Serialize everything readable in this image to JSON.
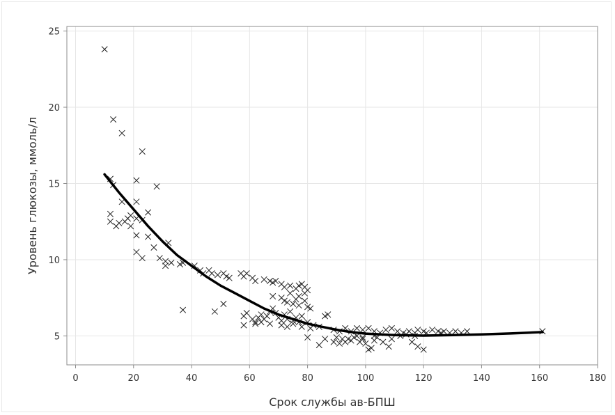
{
  "chart_data": {
    "type": "scatter",
    "xlabel": "Срок службы ав-БПШ",
    "ylabel": "Уровень глюкозы, ммоль/л",
    "xlim": [
      -3,
      180
    ],
    "ylim": [
      3.1,
      25.3
    ],
    "xticks": [
      0,
      20,
      40,
      60,
      80,
      100,
      120,
      140,
      160,
      180
    ],
    "yticks": [
      5,
      10,
      15,
      20,
      25
    ],
    "grid": true,
    "marker": "x",
    "colors": {
      "points": "#222222",
      "fit_line": "#000000",
      "grid": "#e6e6e6",
      "axes": "#8c8c8c"
    },
    "points": [
      [
        10,
        23.8
      ],
      [
        13,
        19.2
      ],
      [
        16,
        18.3
      ],
      [
        23,
        17.1
      ],
      [
        12,
        15.3
      ],
      [
        13,
        14.9
      ],
      [
        21,
        15.2
      ],
      [
        28,
        14.8
      ],
      [
        16,
        13.8
      ],
      [
        21,
        13.8
      ],
      [
        25,
        13.1
      ],
      [
        12,
        13.0
      ],
      [
        12,
        12.5
      ],
      [
        15,
        12.4
      ],
      [
        14,
        12.2
      ],
      [
        17,
        12.5
      ],
      [
        18,
        12.7
      ],
      [
        19,
        12.9
      ],
      [
        19,
        12.2
      ],
      [
        21,
        12.7
      ],
      [
        23,
        12.6
      ],
      [
        21,
        11.6
      ],
      [
        25,
        11.5
      ],
      [
        32,
        11.1
      ],
      [
        27,
        10.8
      ],
      [
        21,
        10.5
      ],
      [
        23,
        10.1
      ],
      [
        29,
        10.1
      ],
      [
        31,
        9.9
      ],
      [
        31,
        9.6
      ],
      [
        33,
        9.8
      ],
      [
        36,
        9.7
      ],
      [
        37,
        9.8
      ],
      [
        41,
        9.6
      ],
      [
        43,
        9.3
      ],
      [
        44,
        9.1
      ],
      [
        46,
        9.3
      ],
      [
        47,
        9.1
      ],
      [
        49,
        9.0
      ],
      [
        51,
        9.1
      ],
      [
        52,
        8.9
      ],
      [
        53,
        8.8
      ],
      [
        57,
        9.1
      ],
      [
        58,
        8.9
      ],
      [
        59,
        9.1
      ],
      [
        61,
        8.8
      ],
      [
        62,
        8.6
      ],
      [
        65,
        8.7
      ],
      [
        67,
        8.6
      ],
      [
        68,
        8.5
      ],
      [
        69,
        8.6
      ],
      [
        71,
        8.4
      ],
      [
        72,
        8.2
      ],
      [
        74,
        8.3
      ],
      [
        76,
        8.1
      ],
      [
        77,
        8.3
      ],
      [
        78,
        8.4
      ],
      [
        79,
        8.2
      ],
      [
        80,
        8.0
      ],
      [
        74,
        7.8
      ],
      [
        77,
        7.6
      ],
      [
        79,
        7.8
      ],
      [
        68,
        7.6
      ],
      [
        71,
        7.5
      ],
      [
        72,
        7.3
      ],
      [
        73,
        7.2
      ],
      [
        75,
        7.1
      ],
      [
        76,
        7.4
      ],
      [
        77,
        7.0
      ],
      [
        79,
        7.3
      ],
      [
        80,
        6.9
      ],
      [
        37,
        6.7
      ],
      [
        48,
        6.6
      ],
      [
        51,
        7.1
      ],
      [
        58,
        6.3
      ],
      [
        59,
        6.5
      ],
      [
        61,
        6.1
      ],
      [
        62,
        5.9
      ],
      [
        63,
        6.2
      ],
      [
        64,
        6.4
      ],
      [
        65,
        6.1
      ],
      [
        66,
        6.3
      ],
      [
        67,
        6.6
      ],
      [
        68,
        6.8
      ],
      [
        69,
        6.5
      ],
      [
        70,
        6.2
      ],
      [
        71,
        6.0
      ],
      [
        72,
        6.4
      ],
      [
        73,
        6.1
      ],
      [
        74,
        6.6
      ],
      [
        75,
        6.0
      ],
      [
        76,
        6.2
      ],
      [
        77,
        5.9
      ],
      [
        78,
        6.3
      ],
      [
        81,
        6.8
      ],
      [
        82,
        5.7
      ],
      [
        58,
        5.7
      ],
      [
        62,
        5.8
      ],
      [
        64,
        5.9
      ],
      [
        67,
        5.8
      ],
      [
        71,
        5.7
      ],
      [
        73,
        5.6
      ],
      [
        75,
        5.8
      ],
      [
        78,
        5.6
      ],
      [
        80,
        5.9
      ],
      [
        81,
        5.5
      ],
      [
        84,
        5.6
      ],
      [
        86,
        6.3
      ],
      [
        87,
        6.4
      ],
      [
        89,
        5.4
      ],
      [
        91,
        5.3
      ],
      [
        93,
        5.5
      ],
      [
        95,
        5.3
      ],
      [
        97,
        5.5
      ],
      [
        99,
        5.4
      ],
      [
        101,
        5.5
      ],
      [
        103,
        5.3
      ],
      [
        105,
        5.2
      ],
      [
        107,
        5.4
      ],
      [
        109,
        5.5
      ],
      [
        111,
        5.3
      ],
      [
        113,
        5.2
      ],
      [
        115,
        5.3
      ],
      [
        117,
        5.2
      ],
      [
        118,
        5.4
      ],
      [
        120,
        5.3
      ],
      [
        121,
        5.2
      ],
      [
        123,
        5.4
      ],
      [
        125,
        5.3
      ],
      [
        126,
        5.2
      ],
      [
        127,
        5.3
      ],
      [
        129,
        5.2
      ],
      [
        131,
        5.3
      ],
      [
        133,
        5.2
      ],
      [
        135,
        5.3
      ],
      [
        161,
        5.3
      ],
      [
        80,
        4.9
      ],
      [
        86,
        4.8
      ],
      [
        89,
        4.6
      ],
      [
        90,
        4.9
      ],
      [
        91,
        4.5
      ],
      [
        92,
        4.8
      ],
      [
        93,
        4.6
      ],
      [
        95,
        4.7
      ],
      [
        96,
        4.9
      ],
      [
        98,
        4.6
      ],
      [
        99,
        4.8
      ],
      [
        100,
        4.5
      ],
      [
        101,
        4.1
      ],
      [
        102,
        4.2
      ],
      [
        103,
        4.7
      ],
      [
        104,
        4.9
      ],
      [
        106,
        4.6
      ],
      [
        108,
        4.3
      ],
      [
        109,
        4.8
      ],
      [
        116,
        4.6
      ],
      [
        118,
        4.3
      ],
      [
        120,
        4.1
      ],
      [
        84,
        4.4
      ],
      [
        94,
        4.8
      ],
      [
        97,
        5.0
      ],
      [
        99,
        4.9
      ],
      [
        103,
        5.0
      ],
      [
        112,
        5.0
      ],
      [
        114,
        5.1
      ],
      [
        117,
        5.0
      ]
    ],
    "fit_curve": [
      [
        10,
        15.6
      ],
      [
        15,
        14.4
      ],
      [
        20,
        13.3
      ],
      [
        25,
        12.2
      ],
      [
        30,
        11.2
      ],
      [
        35,
        10.3
      ],
      [
        40,
        9.6
      ],
      [
        45,
        8.9
      ],
      [
        50,
        8.3
      ],
      [
        55,
        7.8
      ],
      [
        60,
        7.3
      ],
      [
        65,
        6.8
      ],
      [
        70,
        6.4
      ],
      [
        75,
        6.1
      ],
      [
        80,
        5.8
      ],
      [
        85,
        5.6
      ],
      [
        90,
        5.4
      ],
      [
        95,
        5.25
      ],
      [
        100,
        5.15
      ],
      [
        110,
        5.05
      ],
      [
        120,
        5.02
      ],
      [
        130,
        5.05
      ],
      [
        140,
        5.1
      ],
      [
        150,
        5.16
      ],
      [
        161,
        5.25
      ]
    ]
  }
}
